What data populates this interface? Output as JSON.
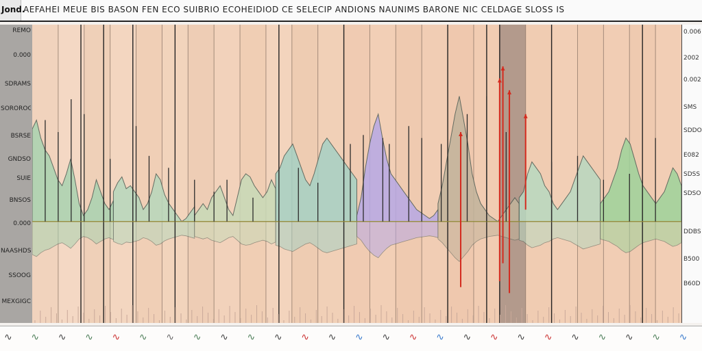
{
  "header": {
    "tab_label": "Jond.",
    "title": "AEFAHEI MEUE BIS BASON FEN ECO SUIBRIO ECOHEIDIOD CE SELECIP ANDIONS NAUNIMS BARONE NIC CELDAGE SLOSS IS"
  },
  "left_panel": {
    "labels": [
      "REMO",
      "0.000",
      "SDRAMS",
      "SOROROG",
      "BSRSE",
      "GNDSO",
      "SUIE",
      "BNSOS",
      "0.000",
      "NAASHDS",
      "SSOOG",
      "MEXGIGC"
    ]
  },
  "right_axis": {
    "labels": [
      "0.006",
      "2002",
      "0.002",
      "SMS",
      "SDDO",
      "E082",
      "SDSS",
      "SDSO",
      "DDBS",
      "B500",
      "B60D"
    ]
  },
  "bottom_strip": {
    "glyphs": [
      {
        "icon": "squiggle",
        "color": "#444444"
      },
      {
        "icon": "squiggle",
        "color": "#4f7f5a"
      },
      {
        "icon": "squiggle",
        "color": "#444444"
      },
      {
        "icon": "squiggle",
        "color": "#4f7f5a"
      },
      {
        "icon": "squiggle",
        "color": "#cc3333"
      },
      {
        "icon": "squiggle",
        "color": "#4f7f5a"
      },
      {
        "icon": "squiggle",
        "color": "#6a6a6a"
      },
      {
        "icon": "squiggle",
        "color": "#4f7f5a"
      },
      {
        "icon": "squiggle",
        "color": "#444444"
      },
      {
        "icon": "squiggle",
        "color": "#4f7f5a"
      },
      {
        "icon": "squiggle",
        "color": "#444444"
      },
      {
        "icon": "squiggle",
        "color": "#cc3333"
      },
      {
        "icon": "squiggle",
        "color": "#444444"
      },
      {
        "icon": "squiggle",
        "color": "#3a7acc"
      },
      {
        "icon": "squiggle",
        "color": "#444444"
      },
      {
        "icon": "squiggle",
        "color": "#cc3333"
      },
      {
        "icon": "squiggle",
        "color": "#3a7acc"
      },
      {
        "icon": "squiggle",
        "color": "#444444"
      },
      {
        "icon": "squiggle",
        "color": "#cc3333"
      },
      {
        "icon": "squiggle",
        "color": "#444444"
      },
      {
        "icon": "squiggle",
        "color": "#cc3333"
      },
      {
        "icon": "squiggle",
        "color": "#444444"
      },
      {
        "icon": "squiggle",
        "color": "#4f7f5a"
      },
      {
        "icon": "squiggle",
        "color": "#444444"
      },
      {
        "icon": "squiggle",
        "color": "#4f7f5a"
      },
      {
        "icon": "squiggle",
        "color": "#3a7acc"
      }
    ]
  },
  "chart_data": {
    "type": "area",
    "title": "",
    "xlabel": "",
    "ylabel": "",
    "ylim": [
      0,
      100
    ],
    "baseline": 34,
    "grid": "vertical",
    "bands": [
      {
        "color": "#f1d3bd"
      },
      {
        "color": "#f4d8c4"
      },
      {
        "color": "#efd0b8"
      },
      {
        "color": "#f3d6c0"
      },
      {
        "color": "#f0cfb6"
      },
      {
        "color": "#f2d4bc"
      },
      {
        "color": "#eecdb5"
      },
      {
        "color": "#f2d2bb"
      },
      {
        "color": "#f0ceb4"
      },
      {
        "color": "#f3d4bd"
      },
      {
        "color": "#eeccb2"
      },
      {
        "color": "#f1d0b7"
      },
      {
        "color": "#f0cbb2"
      },
      {
        "color": "#f2cfb6"
      },
      {
        "color": "#efcab0"
      },
      {
        "color": "#f1cdb4"
      },
      {
        "color": "#efc8ae"
      },
      {
        "color": "#f1ccb2"
      },
      {
        "color": "#b39a8c"
      },
      {
        "color": "#f0ccb2"
      },
      {
        "color": "#f2cfb6"
      },
      {
        "color": "#efcbb1"
      },
      {
        "color": "#f1cdb4"
      },
      {
        "color": "#efcab0"
      },
      {
        "color": "#f2ceb5"
      }
    ],
    "series": [
      {
        "color": "#a9d3b1",
        "values": [
          65,
          68,
          62,
          58,
          56,
          52,
          48,
          46,
          50,
          55,
          48,
          40,
          36,
          38,
          42,
          48,
          44,
          40,
          38,
          41
        ]
      },
      {
        "color": "#b7d8bd",
        "values": [
          44,
          47,
          49,
          45,
          46,
          44,
          42,
          38,
          40,
          44,
          50,
          48,
          43,
          40,
          38,
          36,
          34,
          35,
          37,
          39
        ]
      },
      {
        "color": "#c8dab8",
        "values": [
          36,
          38,
          40,
          38,
          42,
          44,
          46,
          42,
          38,
          36,
          42,
          48,
          50,
          49,
          46,
          44,
          42,
          44,
          48,
          45
        ]
      },
      {
        "color": "#a6d1c4",
        "values": [
          50,
          52,
          56,
          58,
          60,
          56,
          52,
          48,
          46,
          50,
          55,
          60,
          62,
          60,
          58,
          56,
          54,
          52,
          50,
          48
        ]
      },
      {
        "color": "#b7a9e6",
        "values": [
          36,
          42,
          52,
          60,
          66,
          70,
          62,
          55,
          50,
          48,
          46,
          44,
          42,
          40,
          38,
          37,
          36,
          35,
          36,
          38
        ]
      },
      {
        "color": "#c2b49c",
        "values": [
          40,
          46,
          54,
          62,
          70,
          76,
          68,
          60,
          50,
          44,
          40,
          38,
          36,
          35,
          34,
          36,
          38,
          40,
          42,
          40
        ]
      },
      {
        "color": "#b8d9c1",
        "values": [
          42,
          44,
          50,
          54,
          52,
          50,
          46,
          44,
          40,
          38,
          40,
          42,
          44,
          48,
          52,
          56,
          54,
          52,
          50,
          48
        ]
      },
      {
        "color": "#9ed39b",
        "values": [
          40,
          42,
          44,
          48,
          52,
          58,
          62,
          60,
          55,
          50,
          46,
          44,
          42,
          40,
          42,
          44,
          48,
          52,
          50,
          46
        ]
      }
    ],
    "spikes": [
      {
        "x": 0.02,
        "top": 68
      },
      {
        "x": 0.04,
        "top": 64
      },
      {
        "x": 0.06,
        "top": 75
      },
      {
        "x": 0.08,
        "top": 70
      },
      {
        "x": 0.11,
        "top": 58
      },
      {
        "x": 0.12,
        "top": 55
      },
      {
        "x": 0.16,
        "top": 66
      },
      {
        "x": 0.18,
        "top": 56
      },
      {
        "x": 0.21,
        "top": 52
      },
      {
        "x": 0.22,
        "top": 54
      },
      {
        "x": 0.25,
        "top": 48
      },
      {
        "x": 0.28,
        "top": 44
      },
      {
        "x": 0.3,
        "top": 48
      },
      {
        "x": 0.34,
        "top": 42
      },
      {
        "x": 0.38,
        "top": 40
      },
      {
        "x": 0.41,
        "top": 52
      },
      {
        "x": 0.44,
        "top": 47
      },
      {
        "x": 0.49,
        "top": 60
      },
      {
        "x": 0.51,
        "top": 63
      },
      {
        "x": 0.54,
        "top": 62
      },
      {
        "x": 0.55,
        "top": 60
      },
      {
        "x": 0.58,
        "top": 66
      },
      {
        "x": 0.6,
        "top": 62
      },
      {
        "x": 0.63,
        "top": 60
      },
      {
        "x": 0.67,
        "top": 70
      },
      {
        "x": 0.7,
        "top": 76
      },
      {
        "x": 0.73,
        "top": 64
      },
      {
        "x": 0.8,
        "top": 54
      },
      {
        "x": 0.84,
        "top": 56
      },
      {
        "x": 0.88,
        "top": 48
      },
      {
        "x": 0.92,
        "top": 50
      },
      {
        "x": 0.96,
        "top": 62
      }
    ],
    "red_spikes": [
      {
        "x": 0.72,
        "low": 14,
        "top": 82
      },
      {
        "x": 0.725,
        "low": 20,
        "top": 86
      },
      {
        "x": 0.735,
        "low": 10,
        "top": 78
      },
      {
        "x": 0.66,
        "low": 12,
        "top": 64
      },
      {
        "x": 0.76,
        "low": 38,
        "top": 70
      }
    ],
    "tall_lines": [
      0.075,
      0.11,
      0.155,
      0.22,
      0.38,
      0.48,
      0.64,
      0.7,
      0.72,
      0.8,
      0.94
    ]
  }
}
